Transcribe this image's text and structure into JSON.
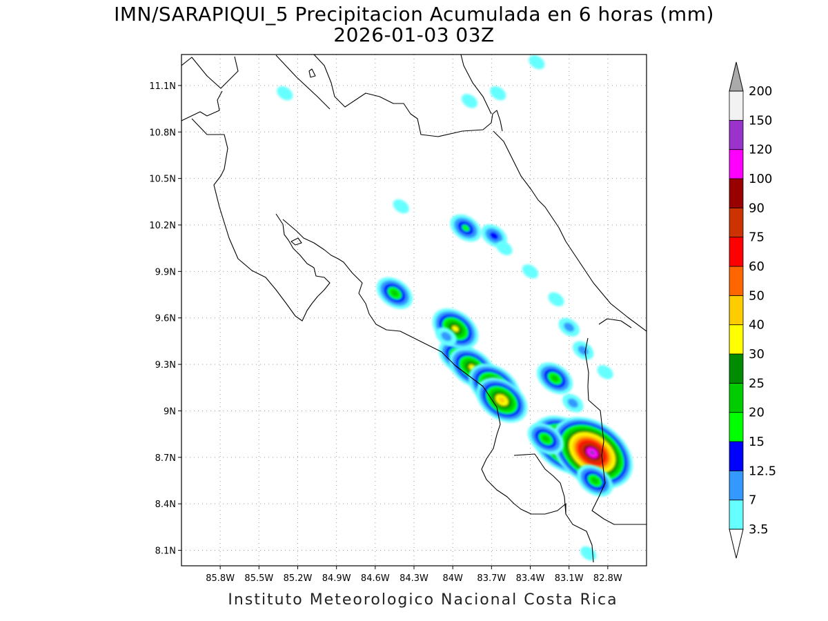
{
  "map": {
    "title_line1": "IMN/SARAPIQUI_5 Precipitacion Acumulada en 6 horas (mm)",
    "title_line2": "2026-01-03 03Z",
    "credit": "Instituto Meteorologico Nacional Costa Rica",
    "lon_labels": [
      "85.8W",
      "85.5W",
      "85.2W",
      "84.9W",
      "84.6W",
      "84.3W",
      "84W",
      "83.7W",
      "83.4W",
      "83.1W",
      "82.8W"
    ],
    "lat_labels": [
      "11.1N",
      "10.8N",
      "10.5N",
      "10.2N",
      "9.9N",
      "9.6N",
      "9.3N",
      "9N",
      "8.7N",
      "8.4N",
      "8.1N"
    ],
    "lon_range": [
      -86.1,
      -82.5
    ],
    "lat_range": [
      8.0,
      11.3
    ],
    "grid": "dotted"
  },
  "colorbar": {
    "units": "mm",
    "levels": [
      "3.5",
      "7",
      "12.5",
      "15",
      "20",
      "25",
      "30",
      "40",
      "50",
      "60",
      "75",
      "90",
      "100",
      "120",
      "150",
      "200"
    ],
    "colors": [
      "#66ffff",
      "#3399ff",
      "#0000ff",
      "#00ff00",
      "#00cc00",
      "#008c00",
      "#ffff00",
      "#ffcc00",
      "#ff6600",
      "#ff0000",
      "#cc3300",
      "#990000",
      "#ff00ff",
      "#9933cc",
      "#f2f2f2",
      "#aaaaaa"
    ]
  },
  "precip_cells": [
    {
      "lon": -83.95,
      "lat": 9.35,
      "peak": 28
    },
    {
      "lon": -83.85,
      "lat": 9.28,
      "peak": 38
    },
    {
      "lon": -83.98,
      "lat": 9.53,
      "peak": 32
    },
    {
      "lon": -83.68,
      "lat": 9.16,
      "peak": 45
    },
    {
      "lon": -83.62,
      "lat": 9.07,
      "peak": 40
    },
    {
      "lon": -83.13,
      "lat": 8.78,
      "peak": 80
    },
    {
      "lon": -82.92,
      "lat": 8.73,
      "peak": 120
    },
    {
      "lon": -82.9,
      "lat": 8.55,
      "peak": 22
    },
    {
      "lon": -83.9,
      "lat": 10.18,
      "peak": 15
    },
    {
      "lon": -83.68,
      "lat": 10.13,
      "peak": 14
    },
    {
      "lon": -84.45,
      "lat": 9.76,
      "peak": 20
    },
    {
      "lon": -83.21,
      "lat": 9.21,
      "peak": 22
    },
    {
      "lon": -83.28,
      "lat": 8.82,
      "peak": 20
    },
    {
      "lon": -82.99,
      "lat": 9.39,
      "peak": 12
    },
    {
      "lon": -83.07,
      "lat": 9.05,
      "peak": 10
    },
    {
      "lon": -83.1,
      "lat": 9.54,
      "peak": 9
    },
    {
      "lon": -84.05,
      "lat": 9.48,
      "peak": 9
    },
    {
      "lon": -83.87,
      "lat": 11.0,
      "peak": 6
    },
    {
      "lon": -83.65,
      "lat": 11.05,
      "peak": 5
    },
    {
      "lon": -83.35,
      "lat": 11.25,
      "peak": 6
    },
    {
      "lon": -84.4,
      "lat": 10.32,
      "peak": 4
    },
    {
      "lon": -83.6,
      "lat": 10.05,
      "peak": 5
    },
    {
      "lon": -83.4,
      "lat": 9.9,
      "peak": 5
    },
    {
      "lon": -83.2,
      "lat": 9.72,
      "peak": 5
    },
    {
      "lon": -82.82,
      "lat": 9.25,
      "peak": 5
    },
    {
      "lon": -82.95,
      "lat": 8.08,
      "peak": 5
    },
    {
      "lon": -85.3,
      "lat": 11.05,
      "peak": 4
    }
  ]
}
